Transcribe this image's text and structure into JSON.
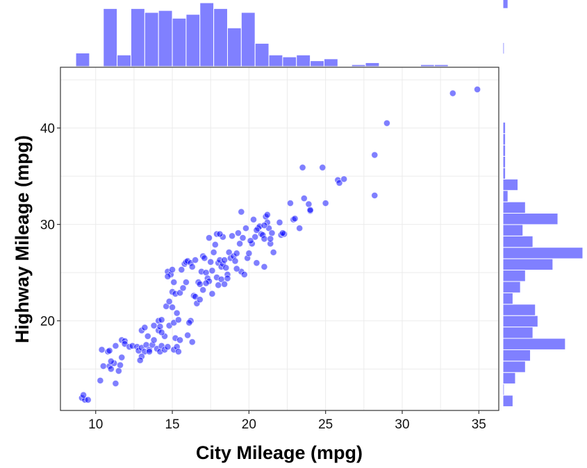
{
  "chart_data": {
    "type": "scatter",
    "title": "",
    "xlabel": "City Mileage (mpg)",
    "ylabel": "Highway Mileage (mpg)",
    "xlim": [
      7.7,
      36.3
    ],
    "ylim": [
      10.7,
      46.3
    ],
    "x_ticks": [
      10,
      15,
      20,
      25,
      30,
      35
    ],
    "y_ticks": [
      20,
      30,
      40
    ],
    "grid": true,
    "point_color": "#0000ff",
    "point_alpha": 0.5,
    "bar_color": "#8080ff",
    "points": [
      [
        9.1,
        12.0
      ],
      [
        9.3,
        11.8
      ],
      [
        9.2,
        12.3
      ],
      [
        9.5,
        11.8
      ],
      [
        10.4,
        17.0
      ],
      [
        10.3,
        13.8
      ],
      [
        10.8,
        16.8
      ],
      [
        10.5,
        15.3
      ],
      [
        10.9,
        15.3
      ],
      [
        11.0,
        15.0
      ],
      [
        11.2,
        15.6
      ],
      [
        11.3,
        17.4
      ],
      [
        11.3,
        13.5
      ],
      [
        11.5,
        14.8
      ],
      [
        11.0,
        15.8
      ],
      [
        10.9,
        16.9
      ],
      [
        11.7,
        18.0
      ],
      [
        11.9,
        17.9
      ],
      [
        11.9,
        17.6
      ],
      [
        12.2,
        17.3
      ],
      [
        11.7,
        16.2
      ],
      [
        11.6,
        15.4
      ],
      [
        12.4,
        17.4
      ],
      [
        12.7,
        17.3
      ],
      [
        12.8,
        16.9
      ],
      [
        13.0,
        19.0
      ],
      [
        13.2,
        19.3
      ],
      [
        13.0,
        17.2
      ],
      [
        13.2,
        16.8
      ],
      [
        13.3,
        17.5
      ],
      [
        13.5,
        17.0
      ],
      [
        13.7,
        17.5
      ],
      [
        13.5,
        16.8
      ],
      [
        13.8,
        18.0
      ],
      [
        13.0,
        16.3
      ],
      [
        12.9,
        15.9
      ],
      [
        13.4,
        18.4
      ],
      [
        13.8,
        19.5
      ],
      [
        14.0,
        17.1
      ],
      [
        14.2,
        16.8
      ],
      [
        14.3,
        17.4
      ],
      [
        14.5,
        17.0
      ],
      [
        14.7,
        17.3
      ],
      [
        14.1,
        20.0
      ],
      [
        14.3,
        20.1
      ],
      [
        14.6,
        21.5
      ],
      [
        14.8,
        22.0
      ],
      [
        14.8,
        19.5
      ],
      [
        14.1,
        19.0
      ],
      [
        14.5,
        18.4
      ],
      [
        14.7,
        25.1
      ],
      [
        14.9,
        24.8
      ],
      [
        14.7,
        24.6
      ],
      [
        14.2,
        19.4
      ],
      [
        14.3,
        18.8
      ],
      [
        15.0,
        23.0
      ],
      [
        15.1,
        24.0
      ],
      [
        15.2,
        22.8
      ],
      [
        15.3,
        20.8
      ],
      [
        15.5,
        22.9
      ],
      [
        15.6,
        25.3
      ],
      [
        15.8,
        25.9
      ],
      [
        15.9,
        26.1
      ],
      [
        15.0,
        25.3
      ],
      [
        15.1,
        17.0
      ],
      [
        15.3,
        17.3
      ],
      [
        15.4,
        16.8
      ],
      [
        15.2,
        18.2
      ],
      [
        15.5,
        18.0
      ],
      [
        15.0,
        21.4
      ],
      [
        15.7,
        23.4
      ],
      [
        15.9,
        24.0
      ],
      [
        15.1,
        19.8
      ],
      [
        15.4,
        20.1
      ],
      [
        16.0,
        26.2
      ],
      [
        16.2,
        26.0
      ],
      [
        16.3,
        25.6
      ],
      [
        16.4,
        22.6
      ],
      [
        16.5,
        22.5
      ],
      [
        16.6,
        21.8
      ],
      [
        16.2,
        20.0
      ],
      [
        16.1,
        19.8
      ],
      [
        16.0,
        18.5
      ],
      [
        16.3,
        17.8
      ],
      [
        16.7,
        24.0
      ],
      [
        16.8,
        23.8
      ],
      [
        16.9,
        25.1
      ],
      [
        16.5,
        26.3
      ],
      [
        16.8,
        22.2
      ],
      [
        17.0,
        26.7
      ],
      [
        17.1,
        26.5
      ],
      [
        17.2,
        25.0
      ],
      [
        17.3,
        24.4
      ],
      [
        17.4,
        24.1
      ],
      [
        17.5,
        26.1
      ],
      [
        17.6,
        25.2
      ],
      [
        17.7,
        27.1
      ],
      [
        17.8,
        27.9
      ],
      [
        17.9,
        29.0
      ],
      [
        17.2,
        23.9
      ],
      [
        17.6,
        22.8
      ],
      [
        17.9,
        24.5
      ],
      [
        17.0,
        23.2
      ],
      [
        17.4,
        28.6
      ],
      [
        18.0,
        26.0
      ],
      [
        18.1,
        26.3
      ],
      [
        18.2,
        25.6
      ],
      [
        18.3,
        25.9
      ],
      [
        18.4,
        26.3
      ],
      [
        18.5,
        25.5
      ],
      [
        18.6,
        24.8
      ],
      [
        18.7,
        27.1
      ],
      [
        18.8,
        26.5
      ],
      [
        18.9,
        28.8
      ],
      [
        18.3,
        28.7
      ],
      [
        18.1,
        29.0
      ],
      [
        18.2,
        24.3
      ],
      [
        18.4,
        23.8
      ],
      [
        18.6,
        24.4
      ],
      [
        18.0,
        23.7
      ],
      [
        19.0,
        26.7
      ],
      [
        19.2,
        27.0
      ],
      [
        19.4,
        28.0
      ],
      [
        19.6,
        28.6
      ],
      [
        19.8,
        29.6
      ],
      [
        19.3,
        29.1
      ],
      [
        19.1,
        26.2
      ],
      [
        19.5,
        25.1
      ],
      [
        19.7,
        24.8
      ],
      [
        19.9,
        26.5
      ],
      [
        19.2,
        25.4
      ],
      [
        19.5,
        31.3
      ],
      [
        20.0,
        27.0
      ],
      [
        20.2,
        28.0
      ],
      [
        20.4,
        28.7
      ],
      [
        20.6,
        29.6
      ],
      [
        20.8,
        29.0
      ],
      [
        20.3,
        30.5
      ],
      [
        20.5,
        26.0
      ],
      [
        20.7,
        29.8
      ],
      [
        20.9,
        28.9
      ],
      [
        20.1,
        28.3
      ],
      [
        20.5,
        29.4
      ],
      [
        21.0,
        28.5
      ],
      [
        21.1,
        30.8
      ],
      [
        21.2,
        30.2
      ],
      [
        21.3,
        29.6
      ],
      [
        21.5,
        29.1
      ],
      [
        21.4,
        28.0
      ],
      [
        21.6,
        27.1
      ],
      [
        21.0,
        29.9
      ],
      [
        21.2,
        31.0
      ],
      [
        21.4,
        28.5
      ],
      [
        21.0,
        25.6
      ],
      [
        22.0,
        30.2
      ],
      [
        22.1,
        28.9
      ],
      [
        22.3,
        29.0
      ],
      [
        22.7,
        32.2
      ],
      [
        22.9,
        30.5
      ],
      [
        22.2,
        29.1
      ],
      [
        23.0,
        30.6
      ],
      [
        23.3,
        29.6
      ],
      [
        23.6,
        32.7
      ],
      [
        23.9,
        32.1
      ],
      [
        23.5,
        35.9
      ],
      [
        24.0,
        31.4
      ],
      [
        24.0,
        31.5
      ],
      [
        24.8,
        35.9
      ],
      [
        25.0,
        32.2
      ],
      [
        25.8,
        34.6
      ],
      [
        25.9,
        34.3
      ],
      [
        26.2,
        34.7
      ],
      [
        28.2,
        37.2
      ],
      [
        28.2,
        33.0
      ],
      [
        29.0,
        40.5
      ],
      [
        33.3,
        43.6
      ],
      [
        34.9,
        44.0
      ]
    ],
    "x_hist": {
      "bin_width": 0.9,
      "x_start": 8.7,
      "counts": [
        7,
        0,
        30,
        6,
        30,
        28,
        29,
        25,
        27,
        33,
        30,
        20,
        28,
        12,
        6,
        5,
        6,
        3,
        4,
        0,
        1,
        2,
        0,
        0,
        0,
        1,
        1
      ]
    },
    "y_hist": {
      "bin_width": 1.18,
      "y_start": 11.1,
      "counts": [
        4,
        0.5,
        5,
        9,
        11,
        25,
        12,
        14,
        13,
        4,
        7,
        9,
        20,
        32,
        12,
        8,
        22,
        9,
        2,
        6,
        1,
        1,
        1,
        1,
        1,
        0,
        0,
        0,
        0,
        0,
        0,
        0.5,
        0,
        0,
        0,
        2
      ]
    }
  }
}
